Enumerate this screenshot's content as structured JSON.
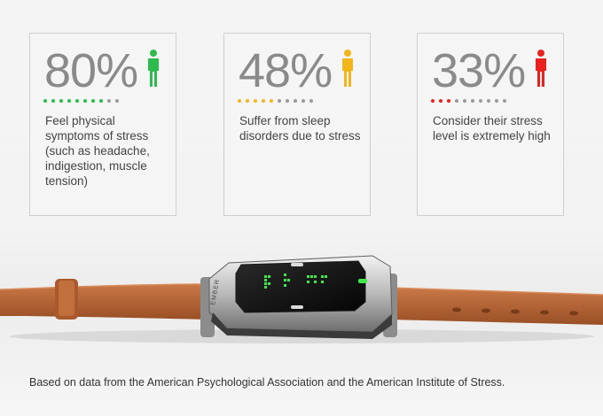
{
  "stats": [
    {
      "value": "80%",
      "icon": "person-icon",
      "color": "#2dbb4e",
      "filled_dots": 8,
      "total_dots": 10,
      "description": "Feel physical symptoms of stress (such as headache, indigestion, muscle tension)"
    },
    {
      "value": "48%",
      "icon": "person-icon",
      "color": "#f2b51c",
      "filled_dots": 5,
      "total_dots": 10,
      "description": "Suffer from sleep disorders due to stress"
    },
    {
      "value": "33%",
      "icon": "person-icon",
      "color": "#e8231f",
      "filled_dots": 3,
      "total_dots": 10,
      "description": "Consider their stress level is extremely high"
    }
  ],
  "watch": {
    "brand": "EMBER",
    "strap_color": "#bd6a38",
    "display_color": "#3ee84a"
  },
  "footnote": "Based on data from the American Psychological Association and the American Institute of Stress."
}
